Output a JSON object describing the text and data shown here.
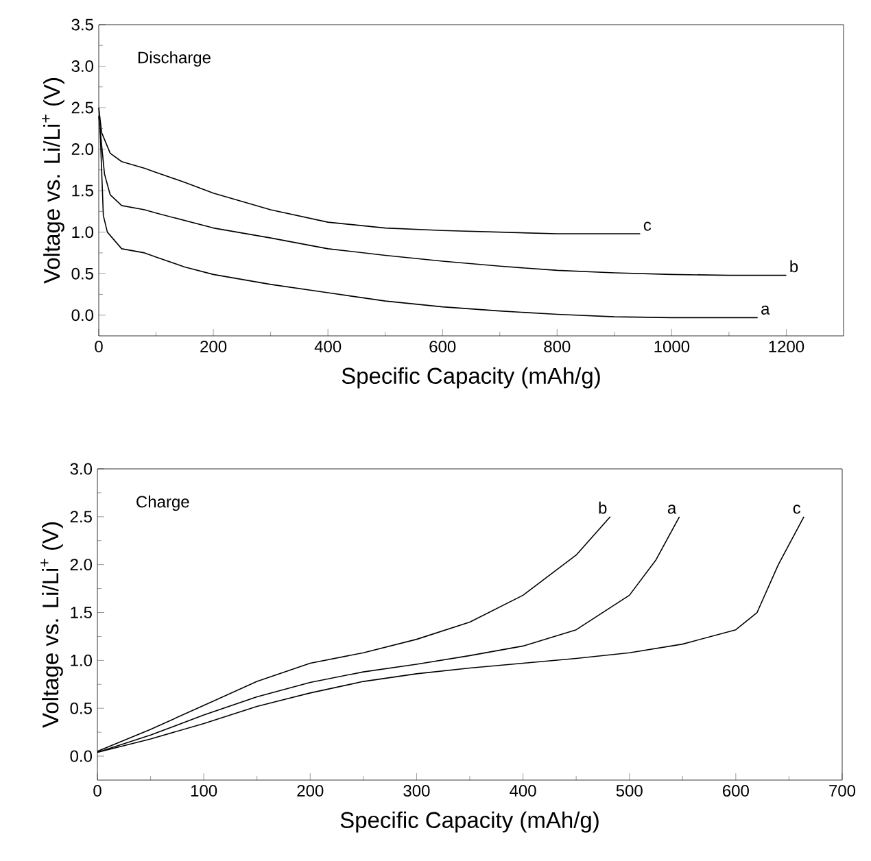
{
  "chart_data": [
    {
      "type": "line",
      "title": "Discharge",
      "xlabel": "Specific Capacity (mAh/g)",
      "ylabel": "Voltage vs. Li/Li$^{+}$ (V)",
      "xlim": [
        0,
        1300
      ],
      "ylim": [
        -0.25,
        3.5
      ],
      "xticks": [
        0,
        200,
        400,
        600,
        800,
        1000,
        1200
      ],
      "yticks": [
        {
          "value": 0,
          "label": "0.0"
        },
        {
          "value": 0.5,
          "label": "0.5"
        },
        {
          "value": 1,
          "label": "1.0"
        },
        {
          "value": 1.5,
          "label": "1.5"
        },
        {
          "value": 2,
          "label": "2.0"
        },
        {
          "value": 2.5,
          "label": "2.5"
        },
        {
          "value": 3,
          "label": "3.0"
        },
        {
          "value": 3.5,
          "label": "3.5"
        }
      ],
      "marker": "none",
      "line_style": "solid",
      "series": [
        {
          "name": "a",
          "color": "#000000",
          "x": [
            2,
            8,
            15,
            40,
            80,
            100,
            150,
            200,
            300,
            400,
            500,
            600,
            700,
            800,
            900,
            1000,
            1150
          ],
          "values": [
            2.3,
            1.2,
            1.0,
            0.8,
            0.75,
            0.7,
            0.58,
            0.49,
            0.37,
            0.27,
            0.17,
            0.1,
            0.05,
            0.01,
            -0.02,
            -0.03,
            -0.03
          ]
        },
        {
          "name": "b",
          "color": "#000000",
          "x": [
            0,
            10,
            20,
            40,
            80,
            100,
            200,
            300,
            400,
            500,
            600,
            700,
            800,
            900,
            1000,
            1100,
            1200
          ],
          "values": [
            2.4,
            1.7,
            1.45,
            1.32,
            1.27,
            1.23,
            1.05,
            0.93,
            0.8,
            0.72,
            0.65,
            0.59,
            0.54,
            0.51,
            0.49,
            0.48,
            0.48
          ]
        },
        {
          "name": "c",
          "color": "#000000",
          "x": [
            0,
            5,
            20,
            40,
            80,
            100,
            150,
            200,
            300,
            400,
            500,
            600,
            700,
            800,
            945
          ],
          "values": [
            2.5,
            2.2,
            1.95,
            1.85,
            1.77,
            1.72,
            1.6,
            1.47,
            1.27,
            1.12,
            1.05,
            1.02,
            1.0,
            0.98,
            0.98
          ]
        }
      ]
    },
    {
      "type": "line",
      "title": "Charge",
      "xlabel": "Specific Capacity (mAh/g)",
      "ylabel": "Voltage vs. Li/Li$^{+}$ (V)",
      "xlim": [
        0,
        700
      ],
      "ylim": [
        -0.25,
        3.0
      ],
      "xticks": [
        0,
        100,
        200,
        300,
        400,
        500,
        600,
        700
      ],
      "yticks": [
        {
          "value": 0,
          "label": "0.0"
        },
        {
          "value": 0.5,
          "label": "0.5"
        },
        {
          "value": 1,
          "label": "1.0"
        },
        {
          "value": 1.5,
          "label": "1.5"
        },
        {
          "value": 2,
          "label": "2.0"
        },
        {
          "value": 2.5,
          "label": "2.5"
        },
        {
          "value": 3,
          "label": "3.0"
        }
      ],
      "marker": "none",
      "line_style": "solid",
      "series": [
        {
          "name": "b",
          "color": "#000000",
          "x": [
            0,
            50,
            100,
            150,
            200,
            250,
            300,
            350,
            400,
            450,
            482
          ],
          "values": [
            0.05,
            0.28,
            0.53,
            0.78,
            0.97,
            1.08,
            1.22,
            1.4,
            1.68,
            2.1,
            2.5
          ]
        },
        {
          "name": "a",
          "color": "#000000",
          "x": [
            0,
            50,
            100,
            150,
            200,
            250,
            300,
            350,
            400,
            450,
            500,
            525,
            547
          ],
          "values": [
            0.04,
            0.22,
            0.43,
            0.62,
            0.77,
            0.88,
            0.96,
            1.05,
            1.15,
            1.32,
            1.68,
            2.05,
            2.5
          ]
        },
        {
          "name": "c",
          "color": "#000000",
          "x": [
            0,
            50,
            100,
            150,
            200,
            250,
            300,
            350,
            400,
            450,
            500,
            550,
            600,
            620,
            640,
            664
          ],
          "values": [
            0.04,
            0.18,
            0.34,
            0.52,
            0.66,
            0.78,
            0.86,
            0.92,
            0.97,
            1.02,
            1.08,
            1.17,
            1.32,
            1.5,
            2.0,
            2.5
          ]
        }
      ]
    }
  ]
}
